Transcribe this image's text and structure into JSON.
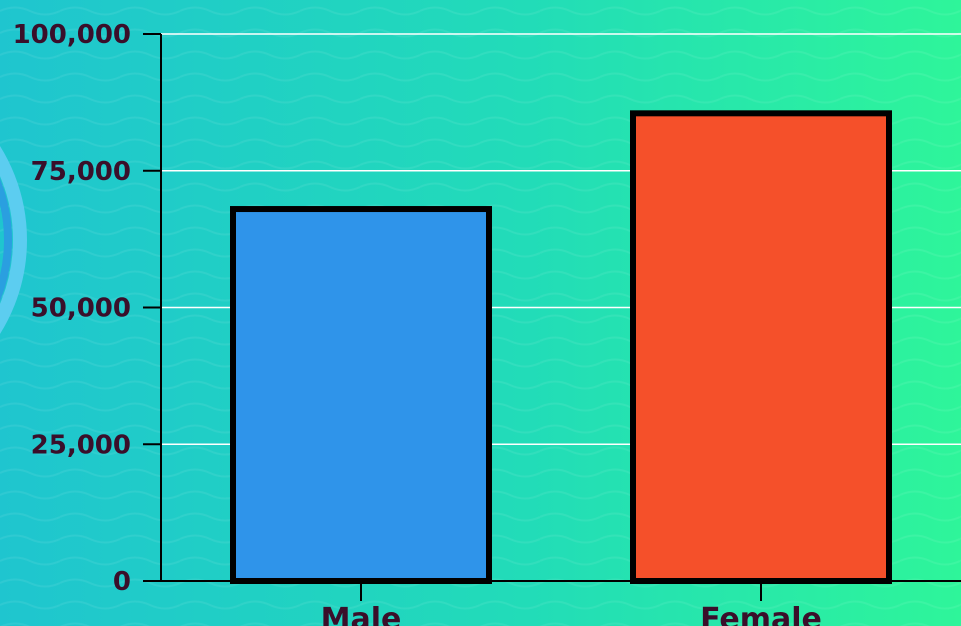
{
  "chart_data": {
    "type": "bar",
    "title": "",
    "xlabel": "",
    "ylabel": "",
    "categories": [
      "Male",
      "Female"
    ],
    "values": [
      68000,
      85500
    ],
    "colors": [
      "#2f94ea",
      "#f5502a"
    ],
    "ylim": [
      0,
      100000
    ],
    "yticks": [
      0,
      25000,
      50000,
      75000,
      100000
    ],
    "ytick_labels": [
      "0",
      "25,000",
      "50,000",
      "75,000",
      "100,000"
    ],
    "grid": true
  }
}
